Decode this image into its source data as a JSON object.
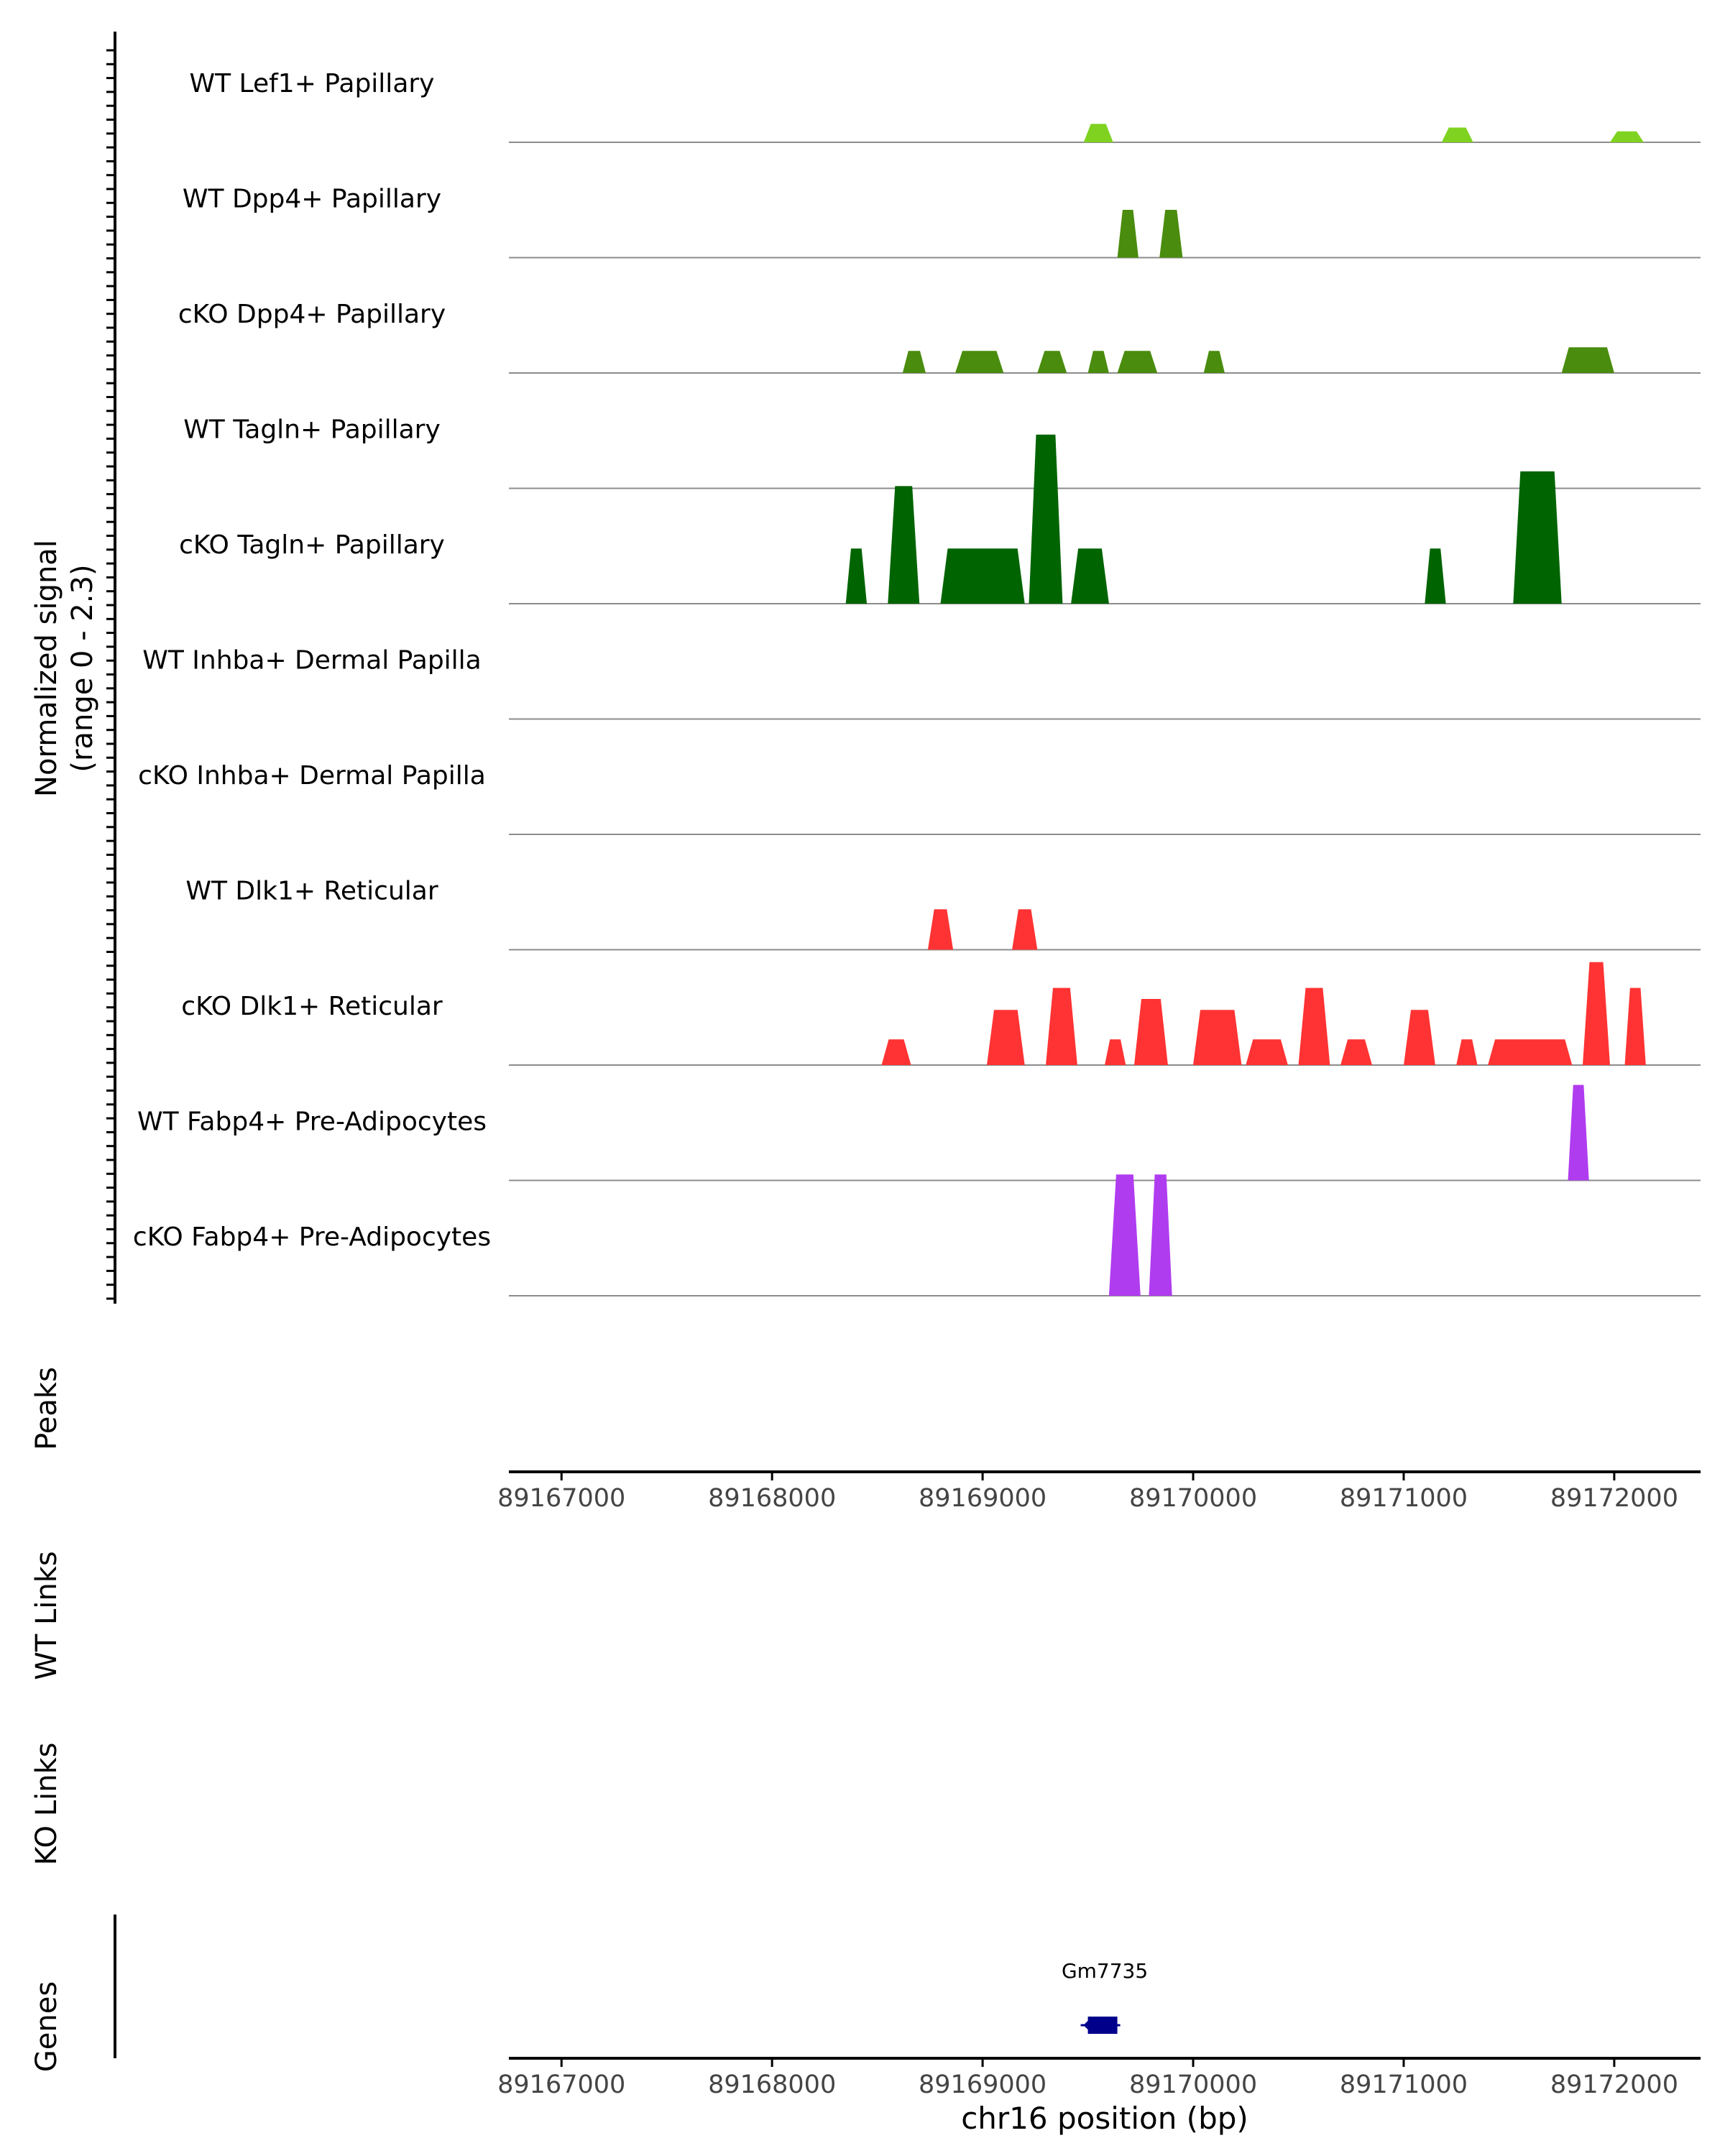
{
  "chart_data": {
    "type": "area",
    "title": "",
    "signal_ylabel_line1": "Normalized signal",
    "signal_ylabel_line2": "(range 0 - 2.3)",
    "ylim": [
      0,
      2.3
    ],
    "xlim": [
      89166750,
      89172410
    ],
    "xlabel": "chr16 position (bp)",
    "x_ticks": [
      89167000,
      89168000,
      89169000,
      89170000,
      89171000,
      89172000
    ],
    "x_tick_labels": [
      "89167000",
      "89168000",
      "89169000",
      "89170000",
      "89171000",
      "89172000"
    ],
    "track_labels": {
      "peaks": "Peaks",
      "wt_links": "WT Links",
      "ko_links": "KO Links",
      "genes": "Genes"
    },
    "genes": [
      {
        "name": "Gm7735",
        "start": 89169500,
        "end": 89169640,
        "strand": "-",
        "color": "#00008b"
      }
    ],
    "series": [
      {
        "name": "WT Lef1+ Papillary",
        "color": "#7fd320",
        "peaks": [
          [
            89169480,
            89169620,
            0.25
          ],
          [
            89171180,
            89171330,
            0.2
          ],
          [
            89171980,
            89172140,
            0.15
          ]
        ]
      },
      {
        "name": "WT Dpp4+ Papillary",
        "color": "#4a8c0e",
        "peaks": [
          [
            89169640,
            89169740,
            0.65
          ],
          [
            89169840,
            89169950,
            0.65
          ]
        ]
      },
      {
        "name": "cKO Dpp4+ Papillary",
        "color": "#4a8c0e",
        "peaks": [
          [
            89168620,
            89168730,
            0.3
          ],
          [
            89168870,
            89169100,
            0.3
          ],
          [
            89169260,
            89169400,
            0.3
          ],
          [
            89169500,
            89169600,
            0.3
          ],
          [
            89169640,
            89169830,
            0.3
          ],
          [
            89170050,
            89170150,
            0.3
          ],
          [
            89171750,
            89172000,
            0.35
          ]
        ]
      },
      {
        "name": "WT Tagln+ Papillary",
        "color": "#006400",
        "peaks": []
      },
      {
        "name": "cKO Tagln+ Papillary",
        "color": "#006400",
        "peaks": [
          [
            89168350,
            89168450,
            0.75
          ],
          [
            89168550,
            89168700,
            1.6
          ],
          [
            89168800,
            89169200,
            0.75
          ],
          [
            89169220,
            89169380,
            2.3
          ],
          [
            89169420,
            89169600,
            0.75
          ],
          [
            89171100,
            89171200,
            0.75
          ],
          [
            89171520,
            89171750,
            1.8
          ]
        ]
      },
      {
        "name": "WT Inhba+ Dermal Papilla",
        "color": "#006400",
        "peaks": []
      },
      {
        "name": "cKO Inhba+ Dermal Papilla",
        "color": "#006400",
        "peaks": []
      },
      {
        "name": "WT Dlk1+ Reticular",
        "color": "#ff3333",
        "peaks": [
          [
            89168740,
            89168860,
            0.55
          ],
          [
            89169140,
            89169260,
            0.55
          ]
        ]
      },
      {
        "name": "cKO Dlk1+ Reticular",
        "color": "#ff3333",
        "peaks": [
          [
            89168520,
            89168660,
            0.35
          ],
          [
            89169020,
            89169200,
            0.75
          ],
          [
            89169300,
            89169450,
            1.05
          ],
          [
            89169580,
            89169680,
            0.35
          ],
          [
            89169720,
            89169880,
            0.9
          ],
          [
            89170000,
            89170230,
            0.75
          ],
          [
            89170250,
            89170450,
            0.35
          ],
          [
            89170500,
            89170650,
            1.05
          ],
          [
            89170700,
            89170850,
            0.35
          ],
          [
            89171000,
            89171150,
            0.75
          ],
          [
            89171250,
            89171350,
            0.35
          ],
          [
            89171400,
            89171800,
            0.35
          ],
          [
            89171850,
            89171980,
            1.4
          ],
          [
            89172050,
            89172150,
            1.05
          ]
        ]
      },
      {
        "name": "WT Fabp4+ Pre-Adipocytes",
        "color": "#b03cf0",
        "peaks": [
          [
            89171780,
            89171880,
            1.3
          ]
        ]
      },
      {
        "name": "cKO Fabp4+ Pre-Adipocytes",
        "color": "#b03cf0",
        "peaks": [
          [
            89169600,
            89169750,
            1.65
          ],
          [
            89169790,
            89169900,
            1.65
          ]
        ]
      }
    ]
  }
}
